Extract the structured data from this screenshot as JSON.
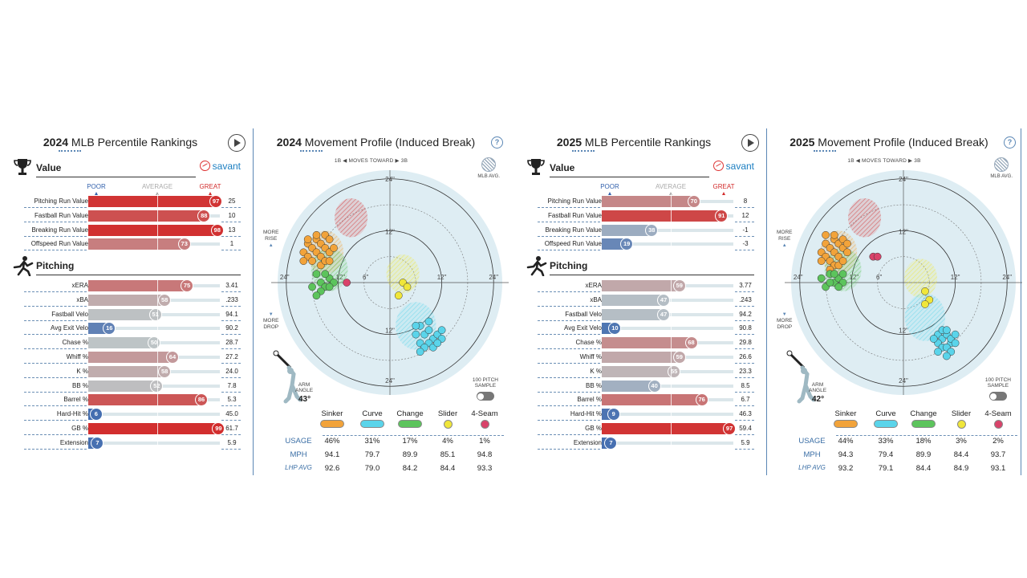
{
  "scale": {
    "poor": "POOR",
    "average": "AVERAGE",
    "great": "GREAT"
  },
  "colors": {
    "poor": "#3462ad",
    "great": "#d22b2b",
    "average": "#bdc4c6",
    "accent": "#5b87b5"
  },
  "savant": "savant",
  "p2024": {
    "title_year": "2024",
    "title_rest": " MLB Percentile Rankings",
    "value_label": "Value",
    "pitching_label": "Pitching",
    "value_rows": [
      {
        "label": "Pitching Run Value",
        "pct": 97,
        "val": "25"
      },
      {
        "label": "Fastball Run Value",
        "pct": 88,
        "val": "10"
      },
      {
        "label": "Breaking Run Value",
        "pct": 98,
        "val": "13"
      },
      {
        "label": "Offspeed Run Value",
        "pct": 73,
        "val": "1"
      }
    ],
    "pitching_rows": [
      {
        "label": "xERA",
        "pct": 75,
        "val": "3.41"
      },
      {
        "label": "xBA",
        "pct": 58,
        "val": ".233"
      },
      {
        "label": "Fastball Velo",
        "pct": 51,
        "val": "94.1"
      },
      {
        "label": "Avg Exit Velo",
        "pct": 16,
        "val": "90.2"
      },
      {
        "label": "Chase %",
        "pct": 50,
        "val": "28.7"
      },
      {
        "label": "Whiff %",
        "pct": 64,
        "val": "27.2"
      },
      {
        "label": "K %",
        "pct": 58,
        "val": "24.0"
      },
      {
        "label": "BB %",
        "pct": 52,
        "val": "7.8"
      },
      {
        "label": "Barrel %",
        "pct": 86,
        "val": "5.3"
      },
      {
        "label": "Hard-Hit %",
        "pct": 6,
        "val": "45.0"
      },
      {
        "label": "GB %",
        "pct": 99,
        "val": "61.7"
      },
      {
        "label": "Extension",
        "pct": 7,
        "val": "5.9"
      }
    ]
  },
  "p2025": {
    "title_year": "2025",
    "title_rest": " MLB Percentile Rankings",
    "value_label": "Value",
    "pitching_label": "Pitching",
    "value_rows": [
      {
        "label": "Pitching Run Value",
        "pct": 70,
        "val": "8"
      },
      {
        "label": "Fastball Run Value",
        "pct": 91,
        "val": "12"
      },
      {
        "label": "Breaking Run Value",
        "pct": 38,
        "val": "-1"
      },
      {
        "label": "Offspeed Run Value",
        "pct": 19,
        "val": "-3"
      }
    ],
    "pitching_rows": [
      {
        "label": "xERA",
        "pct": 59,
        "val": "3.77"
      },
      {
        "label": "xBA",
        "pct": 47,
        "val": ".243"
      },
      {
        "label": "Fastball Velo",
        "pct": 47,
        "val": "94.2"
      },
      {
        "label": "Avg Exit Velo",
        "pct": 10,
        "val": "90.8"
      },
      {
        "label": "Chase %",
        "pct": 68,
        "val": "29.8"
      },
      {
        "label": "Whiff %",
        "pct": 59,
        "val": "26.6"
      },
      {
        "label": "K %",
        "pct": 55,
        "val": "23.3"
      },
      {
        "label": "BB %",
        "pct": 40,
        "val": "8.5"
      },
      {
        "label": "Barrel %",
        "pct": 76,
        "val": "6.7"
      },
      {
        "label": "Hard-Hit %",
        "pct": 9,
        "val": "46.3"
      },
      {
        "label": "GB %",
        "pct": 97,
        "val": "59.4"
      },
      {
        "label": "Extension",
        "pct": 7,
        "val": "5.9"
      }
    ]
  },
  "m2024": {
    "title_year": "2024",
    "title_rest": " Movement Profile (Induced Break)",
    "moves_toward": "1B ◀  MOVES TOWARD  ▶ 3B",
    "mlb_avg": "MLB AVG.",
    "more_rise": "MORE\nRISE",
    "more_drop": "MORE\nDROP",
    "arm_angle_label": "ARM\nANGLE",
    "arm_angle": "43°",
    "sample": "100 PITCH\nSAMPLE",
    "ticks": {
      "t24": "24\"",
      "t12": "12\"",
      "t6": "6\""
    },
    "row_labels": {
      "usage": "USAGE",
      "mph": "MPH",
      "avg": "LHP AVG"
    },
    "pitches": [
      {
        "name": "Sinker",
        "color": "#f2a33a",
        "usage": "46%",
        "mph": "94.1",
        "avg": "92.6"
      },
      {
        "name": "Curve",
        "color": "#5ad4ea",
        "usage": "31%",
        "mph": "79.7",
        "avg": "79.0"
      },
      {
        "name": "Change",
        "color": "#5cc45c",
        "usage": "17%",
        "mph": "89.9",
        "avg": "84.2"
      },
      {
        "name": "Slider",
        "color": "#f0e63a",
        "usage": "4%",
        "mph": "85.1",
        "avg": "84.4"
      },
      {
        "name": "4-Seam",
        "color": "#d9436a",
        "usage": "1%",
        "mph": "94.8",
        "avg": "93.3"
      }
    ]
  },
  "m2025": {
    "title_year": "2025",
    "title_rest": " Movement Profile (Induced Break)",
    "moves_toward": "1B ◀  MOVES TOWARD  ▶ 3B",
    "mlb_avg": "MLB AVG.",
    "more_rise": "MORE\nRISE",
    "more_drop": "MORE\nDROP",
    "arm_angle_label": "ARM\nANGLE",
    "arm_angle": "42°",
    "sample": "100 PITCH\nSAMPLE",
    "ticks": {
      "t24": "24\"",
      "t12": "12\"",
      "t6": "6\""
    },
    "row_labels": {
      "usage": "USAGE",
      "mph": "MPH",
      "avg": "LHP AVG"
    },
    "pitches": [
      {
        "name": "Sinker",
        "color": "#f2a33a",
        "usage": "44%",
        "mph": "94.3",
        "avg": "93.2"
      },
      {
        "name": "Curve",
        "color": "#5ad4ea",
        "usage": "33%",
        "mph": "79.4",
        "avg": "79.1"
      },
      {
        "name": "Change",
        "color": "#5cc45c",
        "usage": "18%",
        "mph": "89.9",
        "avg": "84.4"
      },
      {
        "name": "Slider",
        "color": "#f0e63a",
        "usage": "3%",
        "mph": "84.4",
        "avg": "84.9"
      },
      {
        "name": "4-Seam",
        "color": "#d9436a",
        "usage": "2%",
        "mph": "93.7",
        "avg": "93.1"
      }
    ]
  }
}
